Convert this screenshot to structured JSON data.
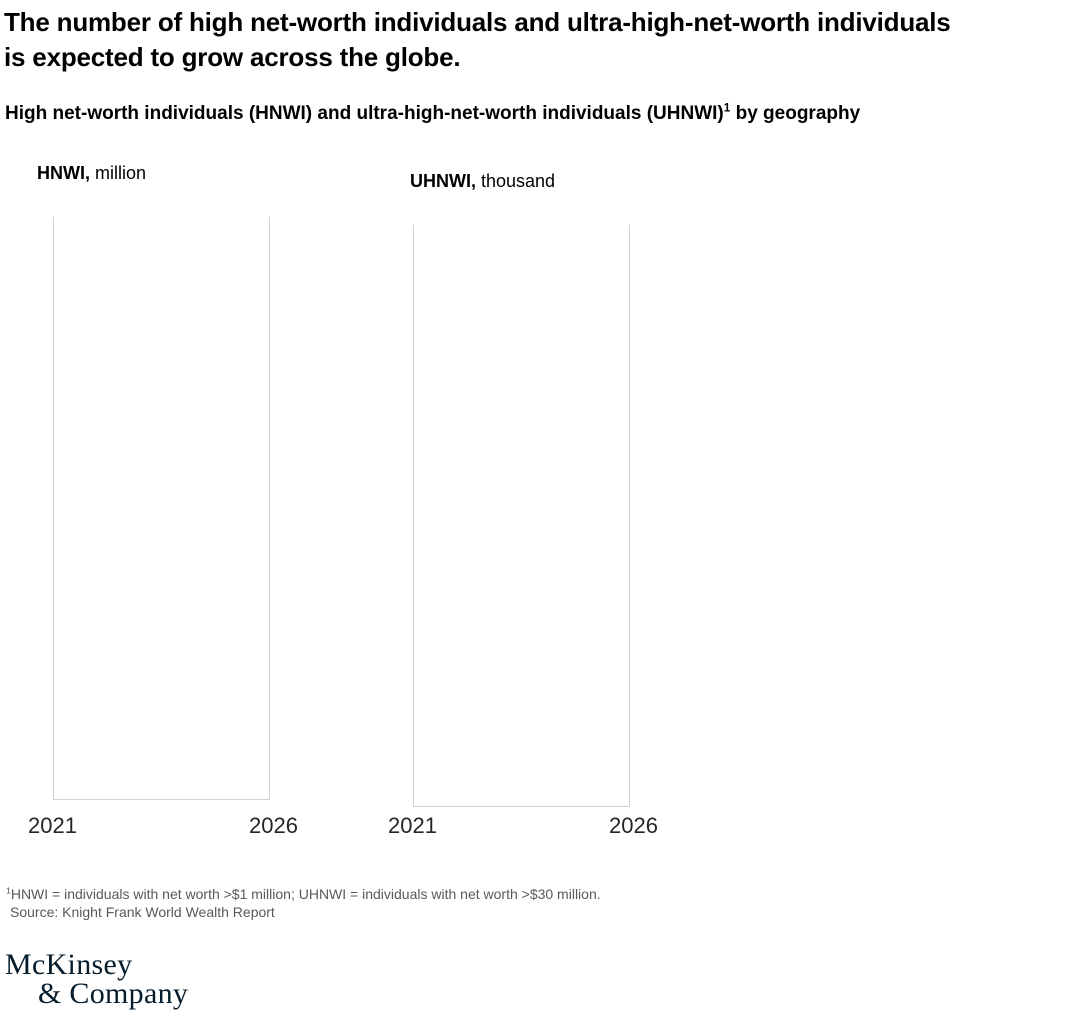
{
  "header": {
    "title_lines": [
      "The number of high net-worth individuals and ultra-high-net-worth individuals",
      "is expected to grow across the globe."
    ],
    "subtitle": {
      "prefix": "High net-worth individuals (HNWI) and ultra-high-net-worth individuals (UHNWI)",
      "sup": "1",
      "suffix": " by geography"
    }
  },
  "charts": [
    {
      "label": "HNWI,",
      "unit": "million",
      "x_ticks": [
        "2021",
        "2026"
      ]
    },
    {
      "label": "UHNWI,",
      "unit": "thousand",
      "x_ticks": [
        "2021",
        "2026"
      ]
    }
  ],
  "chart_data": [
    {
      "type": "area",
      "title": "HNWI, million",
      "ylabel": "HNWI, million",
      "xlabel": "",
      "x_ticks": [
        "2021",
        "2026"
      ],
      "series": [],
      "plot_area_rendered": "empty",
      "grid": false,
      "legend": "none"
    },
    {
      "type": "area",
      "title": "UHNWI, thousand",
      "ylabel": "UHNWI, thousand",
      "xlabel": "",
      "x_ticks": [
        "2021",
        "2026"
      ],
      "series": [],
      "plot_area_rendered": "empty",
      "grid": false,
      "legend": "none"
    }
  ],
  "footer": {
    "footnote_sup": "1",
    "footnote_text": "HNWI = individuals with net worth >$1 million; UHNWI = individuals with net worth >$30 million.",
    "source": "Source: Knight Frank World Wealth Report"
  },
  "logo": {
    "line1": "McKinsey",
    "line2": "& Company"
  },
  "colors": {
    "logo_navy": "#051c2c",
    "chart_border_gray": "#d2d2d2",
    "footnote_gray": "#595959",
    "text_black": "#000000"
  }
}
